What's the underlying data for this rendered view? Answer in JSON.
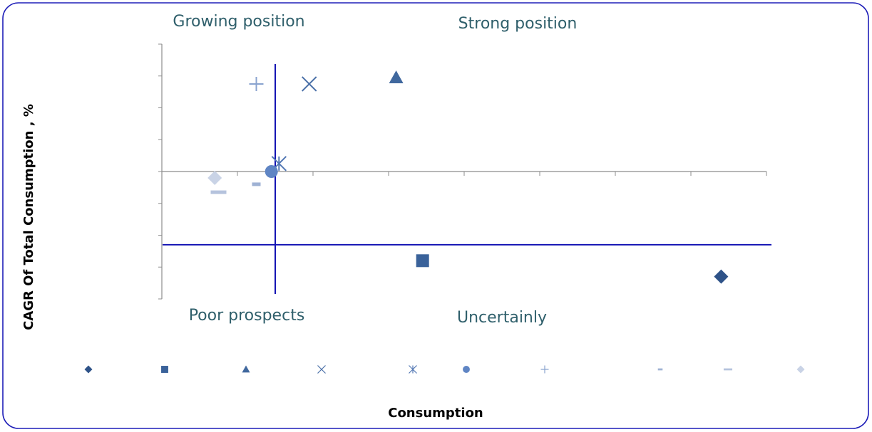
{
  "chart_data": {
    "type": "scatter",
    "xlabel": "Consumption",
    "ylabel": "CAGR Of Total Consumption , %",
    "quadrant_labels": {
      "top_left": "Growing position",
      "top_right": "Strong position",
      "bottom_left": "Poor prospects",
      "bottom_right": "Uncertainly"
    },
    "dividers": {
      "x": 1.5,
      "y": -2.3
    },
    "xlim": [
      0,
      8
    ],
    "ylim": [
      -4,
      4
    ],
    "points": [
      {
        "x": 7.4,
        "y": -3.3,
        "marker": "diamond",
        "color": "#2e5288"
      },
      {
        "x": 3.45,
        "y": -2.8,
        "marker": "square",
        "color": "#3a629a"
      },
      {
        "x": 3.1,
        "y": 2.95,
        "marker": "triangle",
        "color": "#40689e"
      },
      {
        "x": 1.95,
        "y": 2.75,
        "marker": "x",
        "color": "#4a70a8"
      },
      {
        "x": 1.55,
        "y": 0.25,
        "marker": "star",
        "color": "#5378b4"
      },
      {
        "x": 1.45,
        "y": 0.0,
        "marker": "circle",
        "color": "#5f85c4"
      },
      {
        "x": 1.25,
        "y": 2.75,
        "marker": "plus",
        "color": "#8aa3cf"
      },
      {
        "x": 1.25,
        "y": -0.4,
        "marker": "dash-small",
        "color": "#9fb2d4"
      },
      {
        "x": 0.75,
        "y": -0.65,
        "marker": "dash",
        "color": "#b5c3dd"
      },
      {
        "x": 0.7,
        "y": -0.2,
        "marker": "diamond",
        "color": "#c9d3e6"
      }
    ]
  }
}
